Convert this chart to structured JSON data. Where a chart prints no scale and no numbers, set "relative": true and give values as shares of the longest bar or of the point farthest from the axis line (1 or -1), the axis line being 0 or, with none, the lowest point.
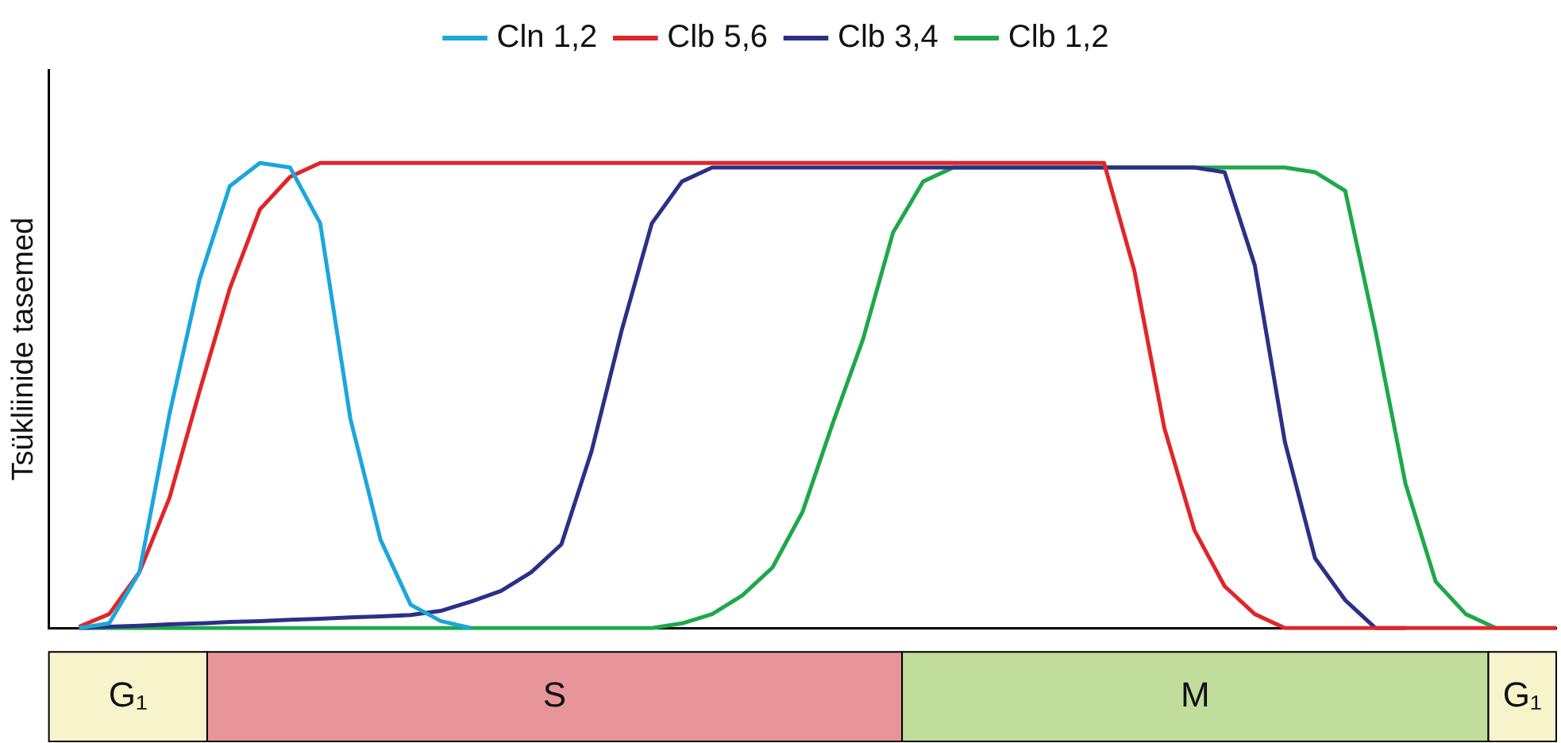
{
  "chart_data": {
    "type": "line",
    "relative": true,
    "ylabel": "Tsükliinide tasemed",
    "legend": "top",
    "grid": false,
    "marker": "none",
    "line_style": "solid",
    "categories": [
      null,
      null,
      null,
      null,
      null,
      null,
      null,
      null,
      null,
      null,
      null,
      null,
      null,
      null,
      null,
      null,
      null,
      null,
      null,
      null,
      null,
      null,
      null,
      null,
      null,
      null,
      null,
      null,
      null,
      null,
      null,
      null,
      null,
      null,
      null,
      null,
      null,
      null,
      null,
      null,
      null,
      null,
      null,
      null,
      null,
      null,
      null,
      null,
      null,
      null,
      null
    ],
    "series": [
      {
        "name": "Cln 1,2",
        "color": "#1aa7dc",
        "values": [
          null,
          0,
          0.01,
          0.12,
          0.46,
          0.75,
          0.95,
          1,
          0.99,
          0.87,
          0.45,
          0.19,
          0.05,
          0.015,
          0,
          null,
          null,
          null,
          null,
          null,
          null,
          null,
          null,
          null,
          null,
          null,
          null,
          null,
          null,
          null,
          null,
          null,
          null,
          null,
          null,
          null,
          null,
          null,
          null,
          null,
          null,
          null,
          null,
          null,
          null,
          null,
          null,
          null,
          null,
          null,
          null
        ]
      },
      {
        "name": "Clb 5,6",
        "color": "#e0262a",
        "values": [
          null,
          0.003,
          0.03,
          0.12,
          0.28,
          0.51,
          0.73,
          0.9,
          0.97,
          1,
          1,
          1,
          1,
          1,
          1,
          1,
          1,
          1,
          1,
          1,
          1,
          1,
          1,
          1,
          1,
          1,
          1,
          1,
          1,
          1,
          1,
          1,
          1,
          1,
          1,
          1,
          0.77,
          0.43,
          0.21,
          0.09,
          0.03,
          0,
          0,
          0,
          0,
          0,
          0,
          0,
          0,
          0,
          0
        ]
      },
      {
        "name": "Clb 3,4",
        "color": "#2b3087",
        "values": [
          null,
          0,
          0.003,
          0.005,
          0.008,
          0.01,
          0.013,
          0.015,
          0.018,
          0.02,
          0.023,
          0.025,
          0.028,
          0.037,
          0.057,
          0.08,
          0.12,
          0.18,
          0.38,
          0.64,
          0.87,
          0.96,
          0.99,
          0.99,
          0.99,
          0.99,
          0.99,
          0.99,
          0.99,
          0.99,
          0.99,
          0.99,
          0.99,
          0.99,
          0.99,
          0.99,
          0.99,
          0.99,
          0.99,
          0.98,
          0.78,
          0.4,
          0.15,
          0.06,
          0,
          0,
          null,
          null,
          null,
          null,
          null
        ]
      },
      {
        "name": "Clb 1,2",
        "color": "#1fa84a",
        "values": [
          null,
          0,
          0,
          0,
          0,
          0,
          0,
          0,
          0,
          0,
          0,
          0,
          0,
          0,
          0,
          0,
          0,
          0,
          0,
          0,
          0,
          0.01,
          0.03,
          0.07,
          0.13,
          0.25,
          0.44,
          0.62,
          0.85,
          0.96,
          0.99,
          0.99,
          0.99,
          0.99,
          0.99,
          0.99,
          0.99,
          0.99,
          0.99,
          0.99,
          0.99,
          0.99,
          0.98,
          0.94,
          0.64,
          0.31,
          0.1,
          0.03,
          0,
          0,
          0
        ]
      }
    ],
    "annotations": [
      "G₁",
      "S",
      "M",
      "G₁"
    ]
  }
}
